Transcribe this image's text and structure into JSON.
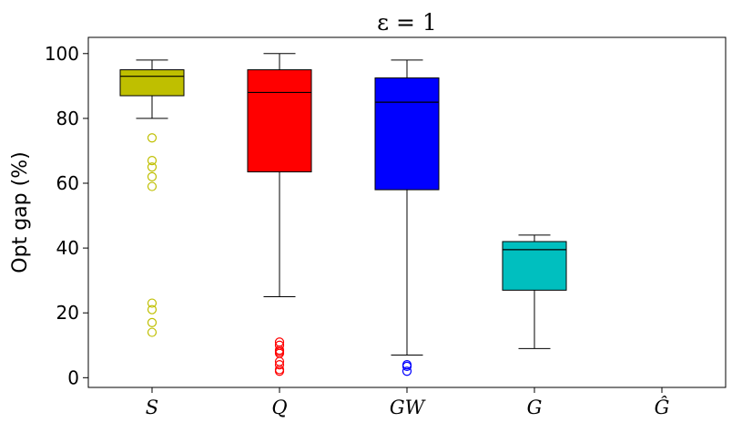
{
  "chart_data": {
    "type": "box",
    "title": "ε = 1",
    "xlabel": "",
    "ylabel": "Opt gap (%)",
    "ylim": [
      -3,
      105
    ],
    "yticks": [
      0,
      20,
      40,
      60,
      80,
      100
    ],
    "categories": [
      "S",
      "Q",
      "GW",
      "G",
      "Ĝ"
    ],
    "colors": [
      "#bfbf00",
      "#ff0000",
      "#0000ff",
      "#00bfbf",
      "#000000"
    ],
    "series": [
      {
        "category": "S",
        "whisker_low": 80,
        "q1": 87,
        "median": 93,
        "q3": 95,
        "whisker_high": 98,
        "outliers": [
          74,
          67,
          65,
          62,
          59,
          23,
          21,
          17,
          14
        ]
      },
      {
        "category": "Q",
        "whisker_low": 25,
        "q1": 63.5,
        "median": 88,
        "q3": 95,
        "whisker_high": 100,
        "outliers": [
          11,
          10,
          8.5,
          8,
          7.5,
          5,
          4,
          2.5,
          2
        ]
      },
      {
        "category": "GW",
        "whisker_low": 7,
        "q1": 58,
        "median": 85,
        "q3": 92.5,
        "whisker_high": 98,
        "outliers": [
          4,
          3.5,
          2
        ]
      },
      {
        "category": "G",
        "whisker_low": 9,
        "q1": 27,
        "median": 39.5,
        "q3": 42,
        "whisker_high": 44,
        "outliers": []
      },
      {
        "category": "Ĝ",
        "whisker_low": null,
        "q1": null,
        "median": null,
        "q3": null,
        "whisker_high": null,
        "outliers": []
      }
    ]
  }
}
